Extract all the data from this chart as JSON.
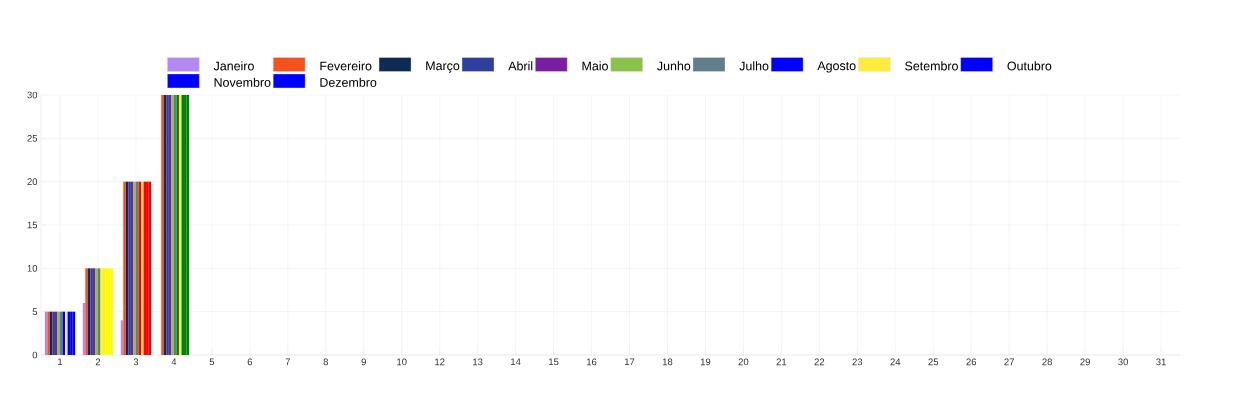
{
  "chart_data": {
    "type": "bar",
    "categories": [
      "1",
      "2",
      "3",
      "4",
      "5",
      "6",
      "7",
      "8",
      "9",
      "10",
      "12",
      "13",
      "14",
      "15",
      "16",
      "17",
      "18",
      "19",
      "20",
      "21",
      "22",
      "23",
      "24",
      "25",
      "26",
      "27",
      "28",
      "29",
      "30",
      "31"
    ],
    "series": [
      {
        "name": "Janeiro",
        "color": "#b388f0",
        "values": [
          5,
          6,
          4,
          0,
          null,
          null,
          null,
          null,
          null,
          null,
          null,
          null,
          null,
          null,
          null,
          null,
          null,
          null,
          null,
          null,
          null,
          null,
          null,
          null,
          null,
          null,
          null,
          null,
          null,
          null
        ]
      },
      {
        "name": "Fevereiro",
        "color": "#f4511e",
        "values": [
          5,
          10,
          20,
          30,
          null,
          null,
          null,
          null,
          null,
          null,
          null,
          null,
          null,
          null,
          null,
          null,
          null,
          null,
          null,
          null,
          null,
          null,
          null,
          null,
          null,
          null,
          null,
          null,
          null,
          null
        ]
      },
      {
        "name": "Março",
        "color": "#0d2b55",
        "values": [
          5,
          10,
          20,
          30,
          null,
          null,
          null,
          null,
          null,
          null,
          null,
          null,
          null,
          null,
          null,
          null,
          null,
          null,
          null,
          null,
          null,
          null,
          null,
          null,
          null,
          null,
          null,
          null,
          null,
          null
        ]
      },
      {
        "name": "Abril",
        "color": "#303f9f",
        "values": [
          5,
          10,
          20,
          30,
          null,
          null,
          null,
          null,
          null,
          null,
          null,
          null,
          null,
          null,
          null,
          null,
          null,
          null,
          null,
          null,
          null,
          null,
          null,
          null,
          null,
          null,
          null,
          null,
          null,
          null
        ]
      },
      {
        "name": "Maio",
        "color": "#7b1fa2",
        "values": [
          5,
          10,
          20,
          30,
          null,
          null,
          null,
          null,
          null,
          null,
          null,
          null,
          null,
          null,
          null,
          null,
          null,
          null,
          null,
          null,
          null,
          null,
          null,
          null,
          null,
          null,
          null,
          null,
          null,
          null
        ]
      },
      {
        "name": "Junho",
        "color": "#8bc34a",
        "values": [
          5,
          10,
          20,
          30,
          null,
          null,
          null,
          null,
          null,
          null,
          null,
          null,
          null,
          null,
          null,
          null,
          null,
          null,
          null,
          null,
          null,
          null,
          null,
          null,
          null,
          null,
          null,
          null,
          null,
          null
        ]
      },
      {
        "name": "Julho",
        "color": "#607d8b",
        "values": [
          5,
          10,
          20,
          30,
          null,
          null,
          null,
          null,
          null,
          null,
          null,
          null,
          null,
          null,
          null,
          null,
          null,
          null,
          null,
          null,
          null,
          null,
          null,
          null,
          null,
          null,
          null,
          null,
          null,
          null
        ]
      },
      {
        "name": "Agosto",
        "color": "#0000ff",
        "colors": [
          "#0000ff",
          "#ffff00",
          "#ff0000",
          "#008000",
          "#0000ff",
          "#0000ff",
          "#0000ff",
          "#0000ff",
          "#0000ff",
          "#0000ff",
          "#0000ff",
          "#0000ff",
          "#0000ff",
          "#0000ff",
          "#0000ff",
          "#0000ff",
          "#0000ff",
          "#0000ff",
          "#0000ff",
          "#0000ff",
          "#0000ff",
          "#0000ff",
          "#0000ff",
          "#0000ff",
          "#0000ff",
          "#0000ff",
          "#0000ff",
          "#0000ff",
          "#0000ff",
          "#0000ff"
        ],
        "values": [
          5,
          10,
          20,
          30,
          null,
          null,
          null,
          null,
          null,
          null,
          null,
          null,
          null,
          null,
          null,
          null,
          null,
          null,
          null,
          null,
          null,
          null,
          null,
          null,
          null,
          null,
          null,
          null,
          null,
          null
        ]
      },
      {
        "name": "Setembro",
        "color": "#ffeb3b",
        "values": [
          5,
          10,
          20,
          30,
          null,
          null,
          null,
          null,
          null,
          null,
          null,
          null,
          null,
          null,
          null,
          null,
          null,
          null,
          null,
          null,
          null,
          null,
          null,
          null,
          null,
          null,
          null,
          null,
          null,
          null
        ]
      },
      {
        "name": "Outubro",
        "color": "#0000ff",
        "colors": [
          "#0000ff",
          "#ffff00",
          "#ff0000",
          "#008000",
          "#0000ff",
          "#0000ff",
          "#0000ff",
          "#0000ff",
          "#0000ff",
          "#0000ff",
          "#0000ff",
          "#0000ff",
          "#0000ff",
          "#0000ff",
          "#0000ff",
          "#0000ff",
          "#0000ff",
          "#0000ff",
          "#0000ff",
          "#0000ff",
          "#0000ff",
          "#0000ff",
          "#0000ff",
          "#0000ff",
          "#0000ff",
          "#0000ff",
          "#0000ff",
          "#0000ff",
          "#0000ff",
          "#0000ff"
        ],
        "values": [
          5,
          10,
          20,
          30,
          null,
          null,
          null,
          null,
          null,
          null,
          null,
          null,
          null,
          null,
          null,
          null,
          null,
          null,
          null,
          null,
          null,
          null,
          null,
          null,
          null,
          null,
          null,
          null,
          null,
          null
        ]
      },
      {
        "name": "Novembro",
        "color": "#0000ff",
        "colors": [
          "#0000ff",
          "#ffff00",
          "#ff0000",
          "#008000",
          "#0000ff",
          "#0000ff",
          "#0000ff",
          "#0000ff",
          "#0000ff",
          "#0000ff",
          "#0000ff",
          "#0000ff",
          "#0000ff",
          "#0000ff",
          "#0000ff",
          "#0000ff",
          "#0000ff",
          "#0000ff",
          "#0000ff",
          "#0000ff",
          "#0000ff",
          "#0000ff",
          "#0000ff",
          "#0000ff",
          "#0000ff",
          "#0000ff",
          "#0000ff",
          "#0000ff",
          "#0000ff",
          "#0000ff"
        ],
        "values": [
          5,
          10,
          20,
          30,
          null,
          null,
          null,
          null,
          null,
          null,
          null,
          null,
          null,
          null,
          null,
          null,
          null,
          null,
          null,
          null,
          null,
          null,
          null,
          null,
          null,
          null,
          null,
          null,
          null,
          null
        ]
      },
      {
        "name": "Dezembro",
        "color": "#0000ff",
        "colors": [
          "#0000ff",
          "#ffff00",
          "#ff0000",
          "#008000",
          "#0000ff",
          "#0000ff",
          "#0000ff",
          "#0000ff",
          "#0000ff",
          "#0000ff",
          "#0000ff",
          "#0000ff",
          "#0000ff",
          "#0000ff",
          "#0000ff",
          "#0000ff",
          "#0000ff",
          "#0000ff",
          "#0000ff",
          "#0000ff",
          "#0000ff",
          "#0000ff",
          "#0000ff",
          "#0000ff",
          "#0000ff",
          "#0000ff",
          "#0000ff",
          "#0000ff",
          "#0000ff",
          "#0000ff"
        ],
        "values": [
          5,
          10,
          20,
          30,
          null,
          null,
          null,
          null,
          null,
          null,
          null,
          null,
          null,
          null,
          null,
          null,
          null,
          null,
          null,
          null,
          null,
          null,
          null,
          null,
          null,
          null,
          null,
          null,
          null,
          null
        ]
      }
    ],
    "ylim": [
      0,
      30
    ],
    "yticks": [
      0,
      5,
      10,
      15,
      20,
      25,
      30
    ],
    "grid": true,
    "legend": "top"
  }
}
